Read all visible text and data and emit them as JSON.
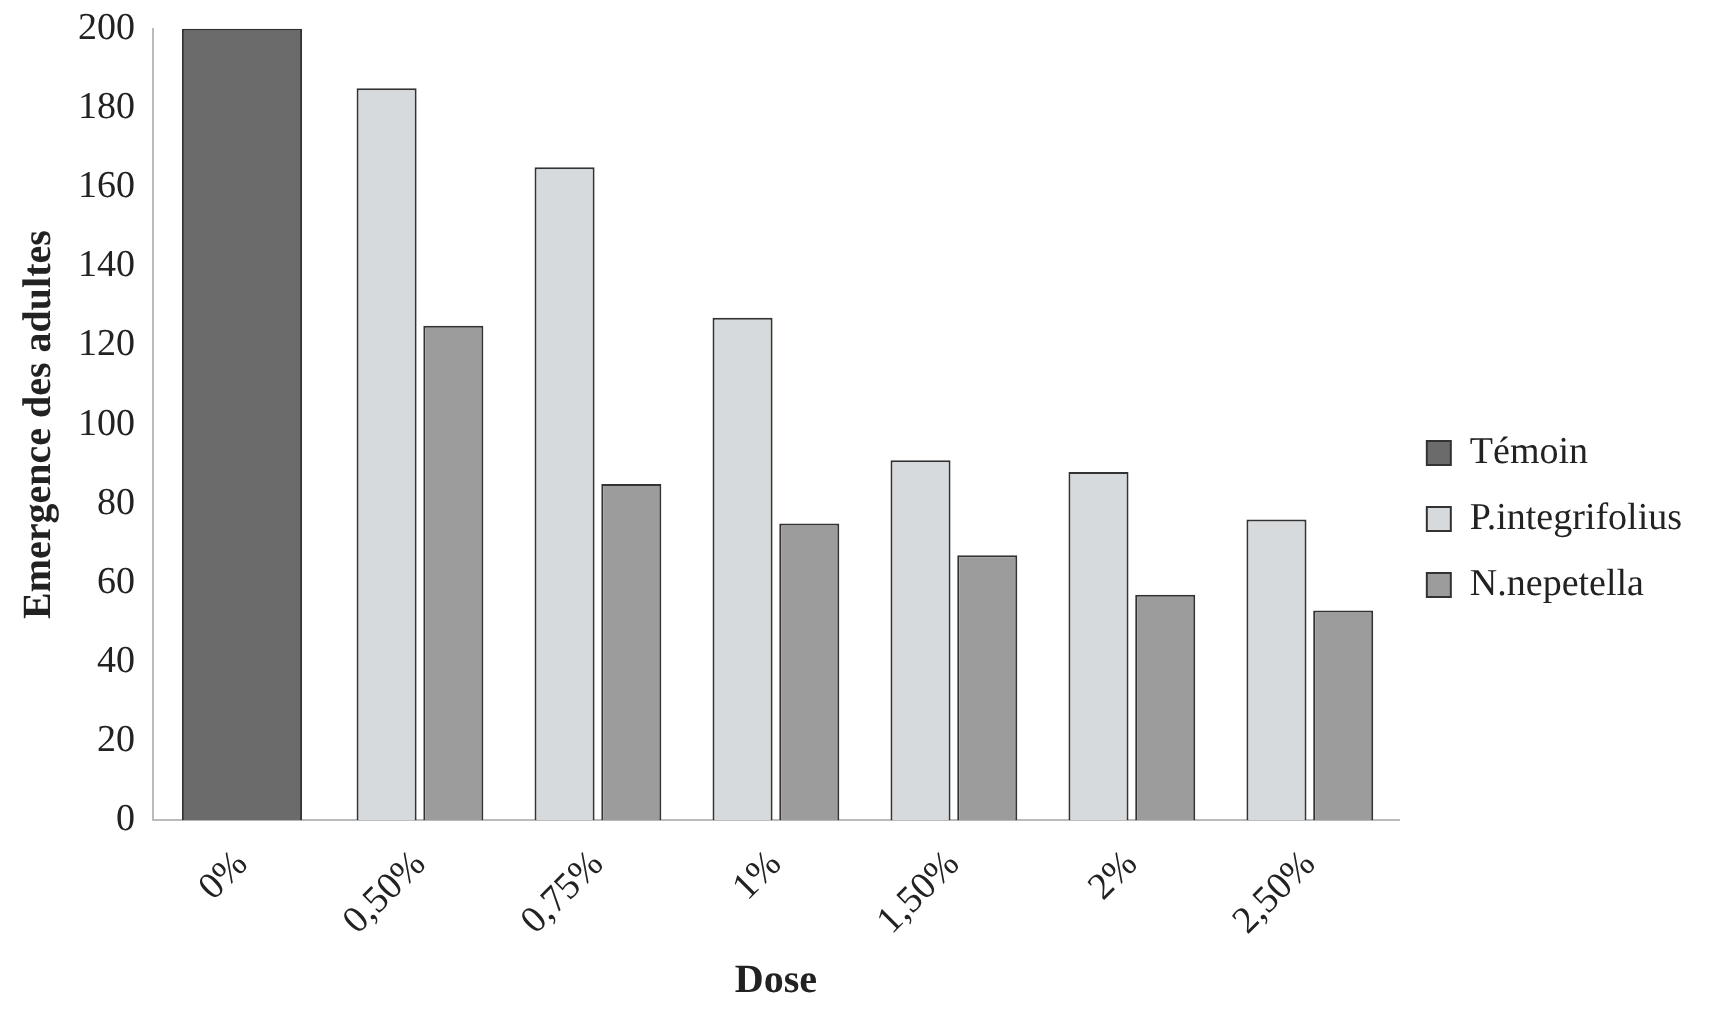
{
  "chart_data": {
    "type": "bar",
    "xlabel": "Dose",
    "ylabel": "Emergence des adultes",
    "categories": [
      "0%",
      "0,50%",
      "0,75%",
      "1%",
      "1,50%",
      "2%",
      "2,50%"
    ],
    "series": [
      {
        "name": "Témoin",
        "color": "#6b6b6b",
        "values": [
          200,
          null,
          null,
          null,
          null,
          null,
          null
        ]
      },
      {
        "name": "P.integrifolius",
        "color": "#d6dadd",
        "values": [
          null,
          185,
          165,
          127,
          91,
          88,
          76
        ]
      },
      {
        "name": "N.nepetella",
        "color": "#9c9c9c",
        "values": [
          null,
          125,
          85,
          75,
          67,
          57,
          53
        ]
      }
    ],
    "ylim": [
      0,
      200
    ],
    "yticks": [
      0,
      20,
      40,
      60,
      80,
      100,
      120,
      140,
      160,
      180,
      200
    ],
    "grid": false,
    "legend": "right"
  }
}
